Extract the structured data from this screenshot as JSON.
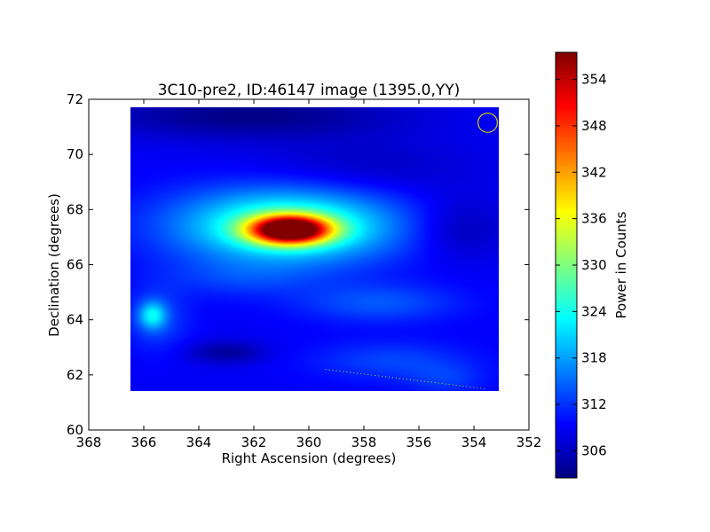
{
  "chart_data": {
    "type": "heatmap",
    "title": "3C10-pre2, ID:46147 image (1395.0,YY)",
    "xlabel": "Right Ascension (degrees)",
    "ylabel": "Declination (degrees)",
    "xlim": [
      368,
      352
    ],
    "ylim": [
      60,
      72
    ],
    "xticks": [
      368,
      366,
      364,
      362,
      360,
      358,
      356,
      354,
      352
    ],
    "yticks": [
      60,
      62,
      64,
      66,
      68,
      70,
      72
    ],
    "image_extent": {
      "ra": [
        366.5,
        353.1
      ],
      "dec": [
        61.4,
        71.7
      ]
    },
    "colormap": "jet",
    "colorbar": {
      "label": "Power in Counts",
      "range": [
        302.5,
        357.5
      ],
      "ticks": [
        306,
        312,
        318,
        324,
        330,
        336,
        342,
        348,
        354
      ]
    },
    "background_level": 309,
    "sources": [
      {
        "ra": 360.7,
        "dec": 67.25,
        "peak": 357.5,
        "sigma_ra": 1.0,
        "sigma_dec": 0.35
      },
      {
        "ra": 360.8,
        "dec": 67.4,
        "peak": 328,
        "sigma_ra": 2.8,
        "sigma_dec": 0.95
      },
      {
        "ra": 365.7,
        "dec": 64.15,
        "peak": 320,
        "sigma_ra": 0.35,
        "sigma_dec": 0.35
      },
      {
        "ra": 365.5,
        "dec": 64.0,
        "peak": 313,
        "sigma_ra": 0.8,
        "sigma_dec": 0.8
      },
      {
        "ra": 357.5,
        "dec": 64.6,
        "peak": 314,
        "sigma_ra": 2.0,
        "sigma_dec": 0.5
      },
      {
        "ra": 357.0,
        "dec": 62.5,
        "peak": 313,
        "sigma_ra": 2.0,
        "sigma_dec": 0.5
      },
      {
        "ra": 362.5,
        "dec": 65.5,
        "peak": 312,
        "sigma_ra": 2.0,
        "sigma_dec": 0.5
      },
      {
        "ra": 355.0,
        "dec": 61.8,
        "peak": 312,
        "sigma_ra": 1.0,
        "sigma_dec": 0.4
      },
      {
        "ra": 363.0,
        "dec": 62.8,
        "peak": 304,
        "sigma_ra": 1.0,
        "sigma_dec": 0.3
      },
      {
        "ra": 362.3,
        "dec": 71.4,
        "peak": 303,
        "sigma_ra": 4.0,
        "sigma_dec": 0.6
      },
      {
        "ra": 354.5,
        "dec": 67.3,
        "peak": 305,
        "sigma_ra": 1.2,
        "sigma_dec": 0.8
      },
      {
        "ra": 358.0,
        "dec": 69.5,
        "peak": 306,
        "sigma_ra": 3.0,
        "sigma_dec": 0.8
      }
    ],
    "beam_marker": {
      "ra": 353.5,
      "dec": 71.15,
      "radius_deg": 0.35,
      "color": "#d8d000"
    },
    "dotted_line": {
      "from": [
        359.4,
        62.2
      ],
      "to": [
        353.6,
        61.5
      ],
      "color": "#d0d000"
    }
  }
}
